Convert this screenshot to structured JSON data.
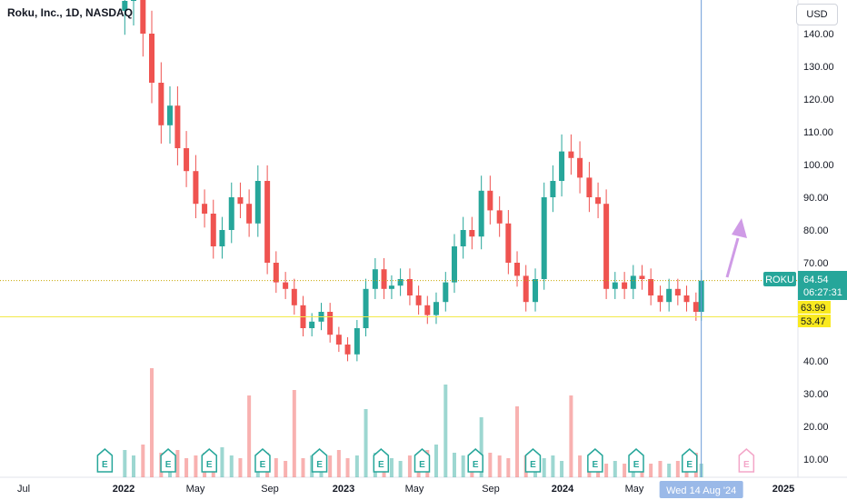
{
  "header": {
    "title": "Roku, Inc., 1D, NASDAQ",
    "currency": "USD"
  },
  "price_axis": {
    "ticks": [
      "140.00",
      "130.00",
      "120.00",
      "110.00",
      "100.00",
      "90.00",
      "80.00",
      "70.00",
      "40.00",
      "30.00",
      "20.00",
      "10.00"
    ],
    "labels": {
      "symbol": "ROKU",
      "price": "64.54",
      "countdown": "06:27:31",
      "level1": "63.99",
      "level2": "53.47"
    }
  },
  "time_axis": {
    "labels": [
      "Jul",
      "2022",
      "May",
      "Sep",
      "2023",
      "May",
      "Sep",
      "2024",
      "May",
      "2025"
    ],
    "crosshair_label": "Wed 14 Aug '24"
  },
  "earnings_marker": "E",
  "colors": {
    "up": "#26a69a",
    "down": "#ef5350",
    "label_green": "#26a69a",
    "label_yellow": "#f9e91f",
    "crosshair": "#6a9bd8",
    "arrow": "#cf9be6",
    "earnings_pink": "#e91e63"
  },
  "chart_data": {
    "type": "candlestick",
    "title": "Roku, Inc., 1D, NASDAQ",
    "xlabel": "",
    "ylabel": "",
    "ylim": [
      5,
      145
    ],
    "last_price": 64.54,
    "horizontal_levels": [
      63.99,
      53.47
    ],
    "x": [
      "2021-12-05",
      "2021-12-20",
      "2022-01-05",
      "2022-01-20",
      "2022-02-05",
      "2022-02-20",
      "2022-03-05",
      "2022-03-20",
      "2022-04-05",
      "2022-04-20",
      "2022-05-05",
      "2022-05-20",
      "2022-06-05",
      "2022-06-20",
      "2022-07-05",
      "2022-07-20",
      "2022-08-05",
      "2022-08-20",
      "2022-09-05",
      "2022-09-20",
      "2022-10-05",
      "2022-10-20",
      "2022-11-05",
      "2022-11-20",
      "2022-12-05",
      "2022-12-20",
      "2023-01-05",
      "2023-01-20",
      "2023-02-05",
      "2023-02-20",
      "2023-03-05",
      "2023-03-20",
      "2023-04-05",
      "2023-04-20",
      "2023-05-05",
      "2023-05-20",
      "2023-06-05",
      "2023-06-20",
      "2023-07-05",
      "2023-07-20",
      "2023-08-05",
      "2023-08-20",
      "2023-09-05",
      "2023-09-20",
      "2023-10-05",
      "2023-10-20",
      "2023-11-05",
      "2023-11-20",
      "2023-12-05",
      "2023-12-20",
      "2024-01-05",
      "2024-01-20",
      "2024-02-05",
      "2024-02-20",
      "2024-03-05",
      "2024-03-20",
      "2024-04-05",
      "2024-04-20",
      "2024-05-05",
      "2024-05-20",
      "2024-06-05",
      "2024-06-20",
      "2024-07-05",
      "2024-07-20",
      "2024-08-05",
      "2024-08-14"
    ],
    "close": [
      150,
      155,
      140,
      125,
      112,
      118,
      105,
      98,
      88,
      85,
      75,
      80,
      90,
      88,
      82,
      95,
      70,
      64,
      62,
      57,
      50,
      52,
      55,
      48,
      45,
      42,
      50,
      62,
      68,
      62,
      63,
      65,
      60,
      57,
      54,
      58,
      64,
      75,
      80,
      78,
      92,
      86,
      82,
      70,
      66,
      58,
      65,
      90,
      95,
      104,
      102,
      96,
      90,
      88,
      62,
      64,
      62,
      66,
      65,
      60,
      58,
      62,
      60,
      58,
      55,
      64.54
    ],
    "earnings_dates": [
      "2021-11-01",
      "2022-02-17",
      "2022-04-28",
      "2022-07-28",
      "2022-11-02",
      "2023-02-15",
      "2023-04-26",
      "2023-07-26",
      "2023-11-01",
      "2024-02-15",
      "2024-04-25",
      "2024-07-25",
      "2024-10-30"
    ],
    "volume": [
      10,
      8,
      12,
      40,
      9,
      8,
      10,
      7,
      8,
      9,
      7,
      11,
      8,
      7,
      30,
      8,
      9,
      7,
      6,
      32,
      7,
      8,
      9,
      8,
      10,
      7,
      8,
      25,
      9,
      8,
      7,
      6,
      8,
      9,
      10,
      12,
      34,
      9,
      8,
      7,
      22,
      9,
      8,
      7,
      26,
      8,
      9,
      7,
      8,
      6,
      30,
      8,
      7,
      6,
      5,
      6,
      5,
      6,
      5,
      5,
      6,
      5,
      6,
      7,
      9,
      5
    ]
  }
}
